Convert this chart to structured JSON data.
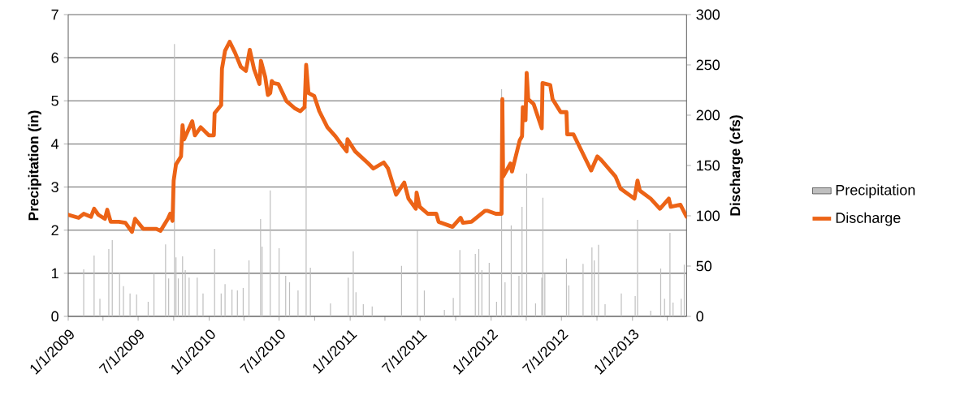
{
  "chart_data": {
    "type": "line",
    "ylabel": "Precipitation (in)",
    "y2label": "Discharge (cfs)",
    "xlim": [
      "2009-01-01",
      "2013-05-21"
    ],
    "xticks": [
      {
        "value": "2009-01-01",
        "label": "1/1/2009"
      },
      {
        "value": "2009-04-01",
        "label": null
      },
      {
        "value": "2009-07-01",
        "label": "7/1/2009"
      },
      {
        "value": "2009-10-01",
        "label": null
      },
      {
        "value": "2010-01-01",
        "label": "1/1/2010"
      },
      {
        "value": "2010-04-01",
        "label": null
      },
      {
        "value": "2010-07-01",
        "label": "7/1/2010"
      },
      {
        "value": "2010-10-01",
        "label": null
      },
      {
        "value": "2011-01-01",
        "label": "1/1/2011"
      },
      {
        "value": "2011-04-01",
        "label": null
      },
      {
        "value": "2011-07-01",
        "label": "7/1/2011"
      },
      {
        "value": "2011-10-01",
        "label": null
      },
      {
        "value": "2012-01-01",
        "label": "1/1/2012"
      },
      {
        "value": "2012-04-01",
        "label": null
      },
      {
        "value": "2012-07-01",
        "label": "7/1/2012"
      },
      {
        "value": "2012-10-01",
        "label": null
      },
      {
        "value": "2013-01-01",
        "label": "1/1/2013"
      },
      {
        "value": "2013-04-01",
        "label": null
      }
    ],
    "ylim": [
      0,
      7
    ],
    "yticks": [
      0,
      1,
      2,
      3,
      4,
      5,
      6,
      7
    ],
    "y2lim": [
      0,
      300
    ],
    "y2ticks": [
      0,
      50,
      100,
      150,
      200,
      250,
      300
    ],
    "grid": "y",
    "legend": "right",
    "marker": "none",
    "series": [
      {
        "name": "Precipitation",
        "type": "bar",
        "color": "#bfbfbf",
        "x": [
          "2009-02-10",
          "2009-03-09",
          "2009-03-24",
          "2009-04-16",
          "2009-04-25",
          "2009-05-14",
          "2009-05-24",
          "2009-06-10",
          "2009-06-27",
          "2009-07-27",
          "2009-08-11",
          "2009-09-10",
          "2009-09-18",
          "2009-10-03",
          "2009-10-07",
          "2009-10-13",
          "2009-10-24",
          "2009-10-31",
          "2009-11-10",
          "2009-12-01",
          "2009-12-16",
          "2010-01-15",
          "2010-02-01",
          "2010-02-11",
          "2010-03-01",
          "2010-03-15",
          "2010-03-30",
          "2010-04-14",
          "2010-05-14",
          "2010-05-18",
          "2010-06-08",
          "2010-07-01",
          "2010-07-18",
          "2010-07-28",
          "2010-08-19",
          "2010-09-09",
          "2010-09-20",
          "2010-11-11",
          "2010-12-27",
          "2011-01-09",
          "2011-01-16",
          "2011-02-04",
          "2011-02-27",
          "2011-05-14",
          "2011-06-24",
          "2011-07-12",
          "2011-09-02",
          "2011-09-25",
          "2011-10-12",
          "2011-11-21",
          "2011-11-30",
          "2011-12-08",
          "2011-12-27",
          "2012-01-15",
          "2012-01-28",
          "2012-02-06",
          "2012-02-22",
          "2012-03-13",
          "2012-03-21",
          "2012-04-02",
          "2012-04-25",
          "2012-05-11",
          "2012-05-14",
          "2012-05-19",
          "2012-07-14",
          "2012-07-20",
          "2012-08-26",
          "2012-09-18",
          "2012-09-24",
          "2012-10-05",
          "2012-10-22",
          "2012-12-03",
          "2013-01-08",
          "2013-01-14",
          "2013-02-17",
          "2013-03-15",
          "2013-03-25",
          "2013-04-08",
          "2013-04-16",
          "2013-05-07",
          "2013-05-15"
        ],
        "values": [
          1.09,
          1.41,
          0.41,
          1.56,
          1.77,
          1.0,
          0.7,
          0.53,
          0.51,
          0.34,
          1.0,
          1.67,
          0.88,
          6.32,
          1.37,
          0.88,
          1.39,
          1.07,
          0.9,
          0.9,
          0.53,
          1.56,
          0.53,
          0.75,
          0.62,
          0.6,
          0.66,
          1.3,
          2.26,
          1.62,
          2.92,
          1.58,
          0.94,
          0.79,
          0.6,
          4.86,
          1.13,
          0.3,
          0.9,
          1.51,
          0.56,
          0.28,
          0.23,
          1.17,
          1.99,
          0.6,
          0.15,
          0.43,
          1.54,
          1.45,
          1.56,
          1.07,
          1.24,
          0.34,
          5.27,
          0.79,
          2.11,
          0.94,
          2.54,
          3.31,
          0.3,
          0.9,
          2.75,
          0.98,
          1.34,
          0.72,
          1.22,
          1.6,
          1.3,
          1.66,
          0.28,
          0.53,
          0.47,
          2.24,
          0.13,
          1.11,
          0.41,
          1.94,
          0.32,
          0.41,
          1.2
        ]
      },
      {
        "name": "Discharge",
        "axis": "y2",
        "color": "#ec6316",
        "x": [
          "2009-01-01",
          "2009-01-28",
          "2009-02-10",
          "2009-03-01",
          "2009-03-09",
          "2009-03-20",
          "2009-04-06",
          "2009-04-12",
          "2009-04-21",
          "2009-05-12",
          "2009-05-29",
          "2009-06-15",
          "2009-06-23",
          "2009-07-14",
          "2009-08-17",
          "2009-08-28",
          "2009-09-16",
          "2009-09-22",
          "2009-09-28",
          "2009-10-01",
          "2009-10-07",
          "2009-10-20",
          "2009-10-24",
          "2009-10-28",
          "2009-11-18",
          "2009-11-25",
          "2009-12-10",
          "2009-12-31",
          "2010-01-13",
          "2010-01-15",
          "2010-02-01",
          "2010-02-03",
          "2010-02-11",
          "2010-02-23",
          "2010-03-09",
          "2010-03-24",
          "2010-04-06",
          "2010-04-16",
          "2010-04-27",
          "2010-05-11",
          "2010-05-15",
          "2010-05-26",
          "2010-06-02",
          "2010-06-08",
          "2010-06-12",
          "2010-06-16",
          "2010-06-29",
          "2010-07-20",
          "2010-08-10",
          "2010-08-25",
          "2010-09-05",
          "2010-09-09",
          "2010-09-15",
          "2010-09-30",
          "2010-10-13",
          "2010-11-03",
          "2010-11-24",
          "2010-12-09",
          "2010-12-23",
          "2010-12-25",
          "2011-01-14",
          "2011-02-17",
          "2011-03-02",
          "2011-03-29",
          "2011-04-09",
          "2011-04-30",
          "2011-05-21",
          "2011-06-01",
          "2011-06-20",
          "2011-06-22",
          "2011-06-30",
          "2011-07-21",
          "2011-08-12",
          "2011-08-18",
          "2011-09-23",
          "2011-10-14",
          "2011-10-20",
          "2011-11-11",
          "2011-12-16",
          "2011-12-22",
          "2012-01-13",
          "2012-01-28",
          "2012-01-30",
          "2012-02-01",
          "2012-02-20",
          "2012-02-24",
          "2012-03-15",
          "2012-03-21",
          "2012-03-23",
          "2012-03-30",
          "2012-04-02",
          "2012-04-06",
          "2012-04-20",
          "2012-05-11",
          "2012-05-13",
          "2012-06-02",
          "2012-06-08",
          "2012-06-29",
          "2012-07-14",
          "2012-07-16",
          "2012-08-01",
          "2012-09-16",
          "2012-10-02",
          "2012-10-13",
          "2012-11-18",
          "2012-12-01",
          "2013-01-06",
          "2013-01-14",
          "2013-01-20",
          "2013-02-17",
          "2013-03-13",
          "2013-04-05",
          "2013-04-10",
          "2013-05-05",
          "2013-05-21"
        ],
        "values": [
          101,
          98,
          102,
          99,
          107,
          101,
          97,
          106,
          94,
          94,
          93,
          84,
          97,
          87,
          87,
          85,
          97,
          102,
          95,
          135,
          151,
          159,
          190,
          176,
          194,
          180,
          188,
          180,
          180,
          202,
          210,
          246,
          264,
          273,
          262,
          248,
          244,
          265,
          246,
          231,
          254,
          238,
          220,
          222,
          234,
          232,
          231,
          214,
          207,
          204,
          208,
          250,
          222,
          219,
          204,
          188,
          179,
          171,
          164,
          176,
          164,
          152,
          147,
          153,
          147,
          121,
          133,
          117,
          107,
          123,
          109,
          102,
          102,
          94,
          89,
          98,
          93,
          94,
          105,
          105,
          102,
          102,
          216,
          139,
          152,
          144,
          175,
          179,
          208,
          195,
          242,
          216,
          211,
          187,
          232,
          230,
          216,
          203,
          203,
          181,
          181,
          145,
          159,
          155,
          139,
          127,
          117,
          135,
          125,
          117,
          107,
          117,
          109,
          111,
          99
        ]
      }
    ]
  }
}
